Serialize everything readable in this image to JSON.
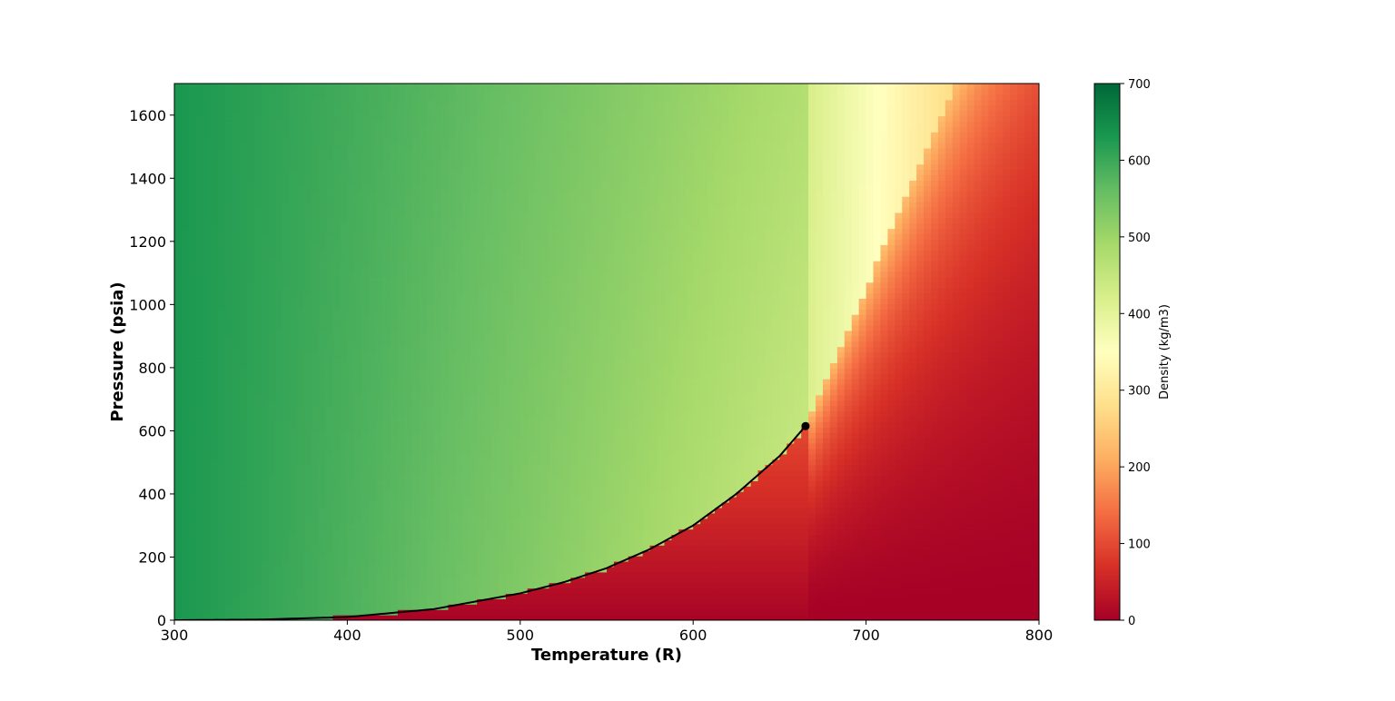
{
  "chart_data": {
    "type": "heatmap",
    "xlabel": "Temperature (R)",
    "ylabel": "Pressure (psia)",
    "xlim": [
      300,
      800
    ],
    "ylim": [
      0,
      1700
    ],
    "xticks": [
      "300",
      "400",
      "500",
      "600",
      "700",
      "800"
    ],
    "yticks": [
      "0",
      "200",
      "400",
      "600",
      "800",
      "1000",
      "1200",
      "1400",
      "1600"
    ],
    "colorbar": {
      "label": "Density (kg/m3)",
      "range": [
        0,
        700
      ],
      "ticks": [
        "0",
        "100",
        "200",
        "300",
        "400",
        "500",
        "600",
        "700"
      ],
      "colormap": "RdYlGn",
      "colormap_stops": [
        "#a50026",
        "#d73027",
        "#f46d43",
        "#fdae61",
        "#fee08b",
        "#ffffbf",
        "#d9ef8b",
        "#a6d96a",
        "#66bd63",
        "#1a9850",
        "#006837"
      ]
    },
    "saturation_curve": {
      "color": "#000000",
      "x": [
        300,
        350,
        400,
        450,
        500,
        525,
        550,
        575,
        600,
        625,
        650,
        665
      ],
      "y": [
        0,
        2,
        10,
        35,
        85,
        120,
        165,
        225,
        300,
        400,
        520,
        615
      ]
    },
    "critical_point": {
      "x": 665,
      "y": 615
    },
    "density_samples": {
      "liquid_side": [
        {
          "x": 300,
          "y": 0,
          "value": 630
        },
        {
          "x": 400,
          "y": 600,
          "value": 550
        },
        {
          "x": 500,
          "y": 800,
          "value": 470
        },
        {
          "x": 600,
          "y": 1200,
          "value": 440
        },
        {
          "x": 700,
          "y": 1600,
          "value": 330
        },
        {
          "x": 790,
          "y": 1650,
          "value": 220
        }
      ],
      "vapor_side": [
        {
          "x": 700,
          "y": 200,
          "value": 30
        },
        {
          "x": 780,
          "y": 50,
          "value": 5
        },
        {
          "x": 780,
          "y": 700,
          "value": 120
        },
        {
          "x": 780,
          "y": 1100,
          "value": 170
        }
      ]
    }
  }
}
